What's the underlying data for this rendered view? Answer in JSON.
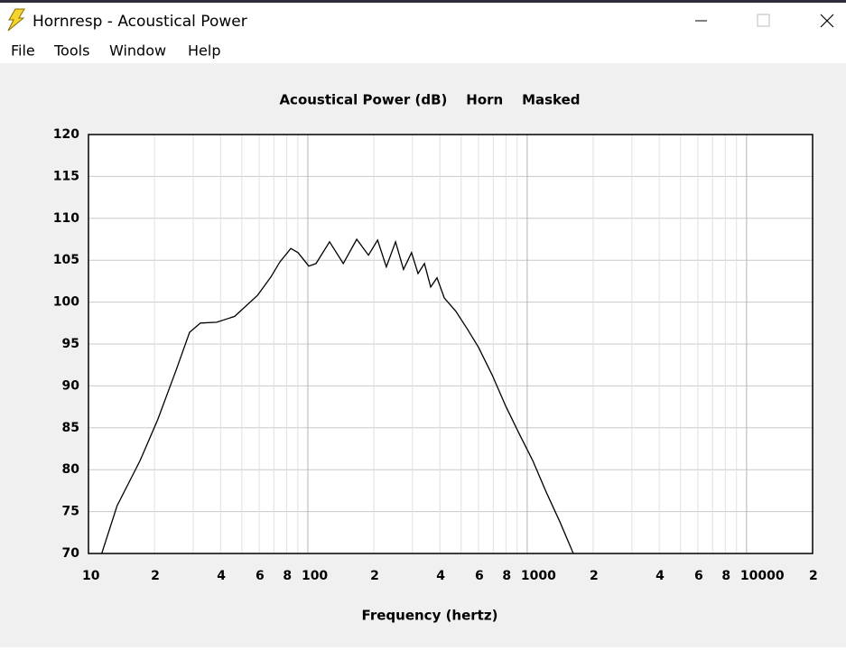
{
  "window": {
    "title": "Hornresp - Acoustical Power",
    "menu": [
      "File",
      "Tools",
      "Window",
      "Help"
    ]
  },
  "chart_data": {
    "type": "line",
    "title": "Acoustical Power (dB)    Horn    Masked",
    "xlabel": "Frequency (hertz)",
    "x": [
      11.5,
      13.5,
      17.2,
      20.7,
      25.1,
      28.9,
      32.4,
      38.4,
      46.4,
      58.9,
      67.8,
      74.6,
      83.6,
      90.2,
      101,
      109,
      125.6,
      145,
      167,
      189,
      208,
      228,
      251,
      273,
      297,
      318,
      340,
      363,
      388,
      419,
      473,
      536,
      600,
      692,
      798,
      919,
      1059,
      1222,
      1408,
      1623
    ],
    "values": [
      70,
      75.7,
      81.1,
      86,
      91.9,
      96.4,
      97.5,
      97.6,
      98.3,
      100.8,
      103,
      104.8,
      106.4,
      105.9,
      104.3,
      104.6,
      107.2,
      104.6,
      107.5,
      105.6,
      107.4,
      104.2,
      107.2,
      103.9,
      105.9,
      103.4,
      104.6,
      101.8,
      102.9,
      100.5,
      98.9,
      96.7,
      94.6,
      91.3,
      87.6,
      84.3,
      81.1,
      77.3,
      73.8,
      70
    ],
    "color": "#000000",
    "xscale": "log",
    "xlim": [
      10,
      20000
    ],
    "ylim": [
      70,
      120
    ],
    "xticks": [
      10,
      {
        "value": 20,
        "label": "2"
      },
      {
        "value": 40,
        "label": "4"
      },
      {
        "value": 60,
        "label": "6"
      },
      {
        "value": 80,
        "label": "8"
      },
      100,
      {
        "value": 200,
        "label": "2"
      },
      {
        "value": 400,
        "label": "4"
      },
      {
        "value": 600,
        "label": "6"
      },
      {
        "value": 800,
        "label": "8"
      },
      1000,
      {
        "value": 2000,
        "label": "2"
      },
      {
        "value": 4000,
        "label": "4"
      },
      {
        "value": 6000,
        "label": "6"
      },
      {
        "value": 8000,
        "label": "8"
      },
      10000,
      {
        "value": 20000,
        "label": "2"
      }
    ],
    "xminorticks": [
      30,
      50,
      70,
      90,
      300,
      500,
      700,
      900,
      3000,
      5000,
      7000,
      9000
    ],
    "yticks": [
      70,
      75,
      80,
      85,
      90,
      95,
      100,
      105,
      110,
      115,
      120
    ],
    "grid": true
  }
}
